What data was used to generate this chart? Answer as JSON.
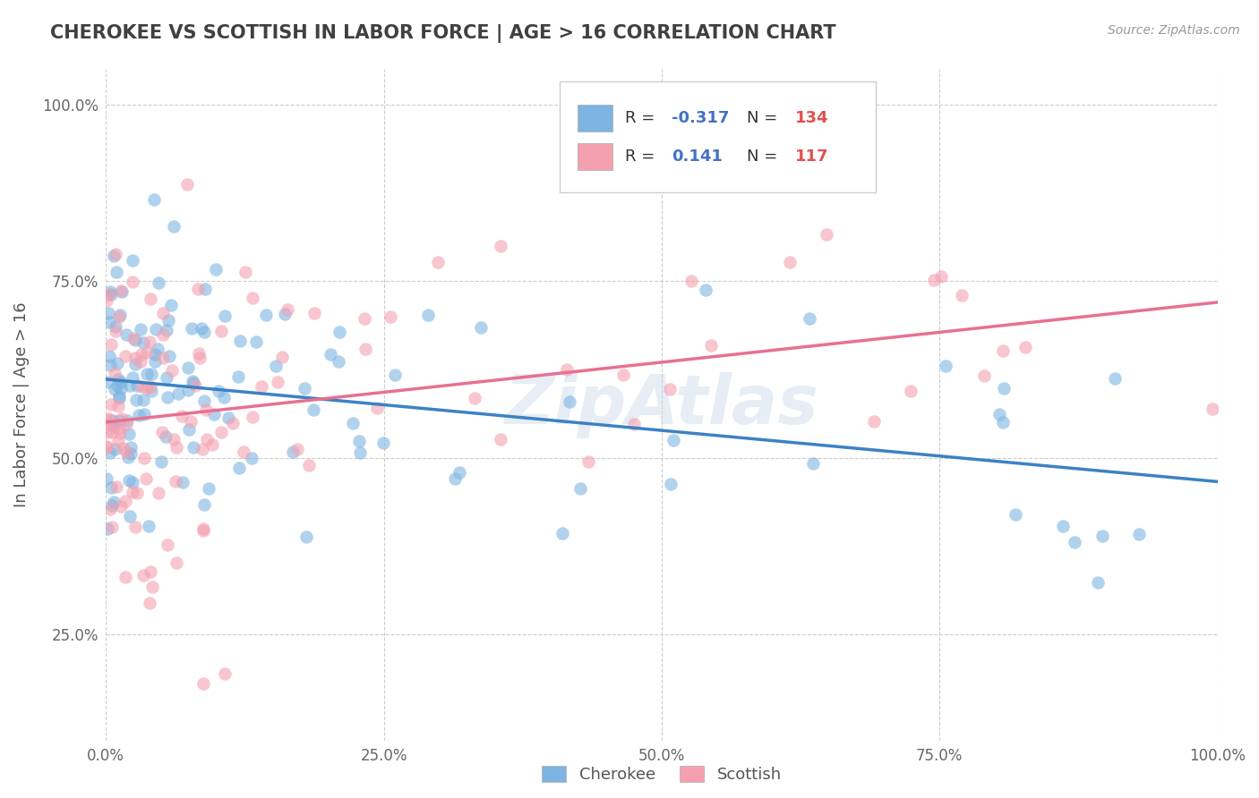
{
  "title": "CHEROKEE VS SCOTTISH IN LABOR FORCE | AGE > 16 CORRELATION CHART",
  "source": "Source: ZipAtlas.com",
  "xlabel": "",
  "ylabel": "In Labor Force | Age > 16",
  "xlim": [
    0.0,
    1.0
  ],
  "ylim": [
    0.1,
    1.05
  ],
  "x_ticks": [
    0.0,
    0.25,
    0.5,
    0.75,
    1.0
  ],
  "x_tick_labels": [
    "0.0%",
    "25.0%",
    "50.0%",
    "75.0%",
    "100.0%"
  ],
  "y_ticks": [
    0.25,
    0.5,
    0.75,
    1.0
  ],
  "y_tick_labels": [
    "25.0%",
    "50.0%",
    "75.0%",
    "100.0%"
  ],
  "cherokee_R": -0.317,
  "cherokee_N": 134,
  "scottish_R": 0.141,
  "scottish_N": 117,
  "cherokee_color": "#7EB4E2",
  "scottish_color": "#F4A0B0",
  "cherokee_line_color": "#3B82C4",
  "scottish_line_color": "#E87090",
  "background_color": "#FFFFFF",
  "grid_color": "#CCCCCC",
  "title_color": "#404040",
  "legend_R_color": "#4472C4",
  "legend_N_color": "#E05050",
  "watermark": "ZipAtlas",
  "cherokee_seed": 42,
  "scottish_seed": 99
}
